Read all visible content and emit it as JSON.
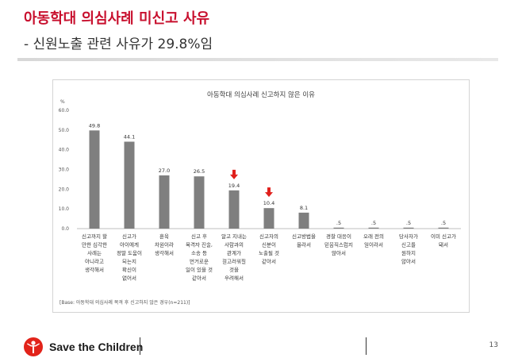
{
  "slide": {
    "title": "아동학대 의심사례 미신고 사유",
    "subtitle": "- 신원노출 관련 사유가 29.8%임",
    "page_number": "13",
    "brand": "Save the Children"
  },
  "chart_data": {
    "type": "bar",
    "title": "아동학대 의심사례 신고하지 않은 이유",
    "ylabel": "%",
    "ylim": [
      0,
      60
    ],
    "yticks": [
      "0.0",
      "10.0",
      "20.0",
      "30.0",
      "40.0",
      "50.0",
      "60.0"
    ],
    "categories": [
      [
        "신고까지 할",
        "만한 심각한",
        "사례는",
        "아니라고",
        "생각해서"
      ],
      [
        "신고가",
        "아이에게",
        "정말 도움이",
        "되는지",
        "확신이",
        "없어서"
      ],
      [
        "훈육",
        "차원이라",
        "생각해서"
      ],
      [
        "신고 후",
        "목격자 진술,",
        "소송 등",
        "번거로운",
        "일이 있을 것",
        "같아서"
      ],
      [
        "알고 지내는",
        "사람과의",
        "관계가",
        "걸고러워질",
        "것을",
        "우려해서"
      ],
      [
        "신고자의",
        "신분이",
        "노출될 것",
        "같아서"
      ],
      [
        "신고방법을",
        "몰라서"
      ],
      [
        "경찰 대응이",
        "믿음직스럽지",
        "않아서"
      ],
      [
        "오래 전의",
        "일이라서"
      ],
      [
        "당사자가",
        "신고를",
        "원하지",
        "않아서"
      ],
      [
        "이미 신고가",
        "돼서"
      ]
    ],
    "values": [
      49.8,
      44.1,
      27.0,
      26.5,
      19.4,
      10.4,
      8.1,
      0.5,
      0.5,
      0.5,
      0.5
    ],
    "data_labels": [
      "49.8",
      "44.1",
      "27.0",
      "26.5",
      "19.4",
      "10.4",
      "8.1",
      ".5",
      ".5",
      ".5",
      ".5"
    ],
    "highlighted_indices": [
      4,
      5
    ],
    "grid": false,
    "bar_color": "#7f7f7f",
    "highlight_arrow_color": "#e0201c",
    "footnote": "[Base: 아동학대 의심사례 목격 후 신고하지 않은 경우(n=211)]"
  },
  "colors": {
    "title": "#c8102e",
    "brand_red": "#e2231a"
  }
}
